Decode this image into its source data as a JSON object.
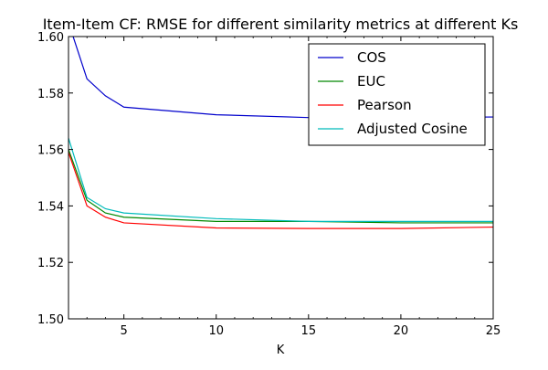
{
  "chart_data": {
    "type": "line",
    "title": "Item-Item CF: RMSE for different similarity metrics at different Ks",
    "xlabel": "K",
    "ylabel": "",
    "xlim": [
      2,
      25
    ],
    "ylim": [
      1.5,
      1.6
    ],
    "xticks": [
      5,
      10,
      15,
      20,
      25
    ],
    "yticks": [
      1.5,
      1.52,
      1.54,
      1.56,
      1.58,
      1.6
    ],
    "ytick_labels": [
      "1.50",
      "1.52",
      "1.54",
      "1.56",
      "1.58",
      "1.60"
    ],
    "grid": false,
    "legend_position": "top-right",
    "x": [
      2,
      3,
      4,
      5,
      10,
      15,
      20,
      25
    ],
    "series": [
      {
        "name": "COS",
        "color": "#0000cc",
        "values": [
          1.605,
          1.585,
          1.579,
          1.575,
          1.5723,
          1.5713,
          1.5713,
          1.5715
        ]
      },
      {
        "name": "EUC",
        "color": "#008800",
        "values": [
          1.56,
          1.542,
          1.5375,
          1.536,
          1.5345,
          1.5345,
          1.534,
          1.534
        ]
      },
      {
        "name": "Pearson",
        "color": "#ff0000",
        "values": [
          1.559,
          1.54,
          1.536,
          1.534,
          1.5322,
          1.532,
          1.532,
          1.5325
        ]
      },
      {
        "name": "Adjusted Cosine",
        "color": "#00bbbb",
        "values": [
          1.564,
          1.543,
          1.539,
          1.5375,
          1.5355,
          1.5345,
          1.5345,
          1.5345
        ]
      }
    ]
  }
}
